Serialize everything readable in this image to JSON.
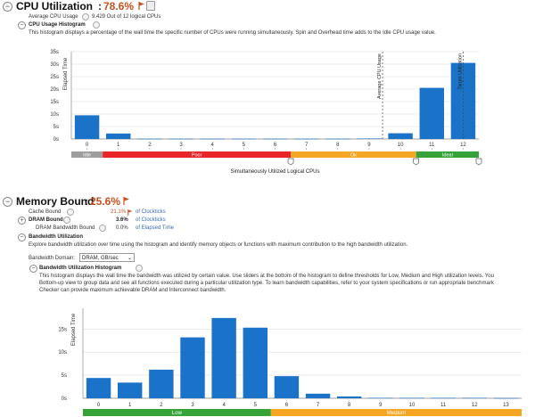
{
  "cpu": {
    "title": "CPU Utilization",
    "value": "78.6%",
    "avg_label": "Average CPU Usage",
    "avg_value": "9.429 Out of 12 logical CPUs",
    "histogram_title": "CPU Usage Histogram",
    "histogram_desc": "This histogram displays a percentage of the wall time the specific number of CPUs were running simultaneously. Spin and Overhead time adds to the Idle CPU usage value.",
    "y_label": "Elapsed Time",
    "x_label": "Simultaneously Utilized Logical CPUs",
    "avg_marker_label": "Average CPU Usage",
    "target_marker_label": "Target Utilization",
    "bands": {
      "idle": "Idle",
      "poor": "Poor",
      "ok": "Ok",
      "ideal": "Ideal"
    },
    "colors": {
      "bar": "#1a72c9",
      "idle": "#9e9e9e",
      "poor": "#e8262a",
      "ok": "#f5a623",
      "ideal": "#35a33a",
      "metric": "#c8501e"
    }
  },
  "memory": {
    "title": "Memory Bound",
    "value": "25.6%",
    "rows": [
      {
        "label": "Cache Bound",
        "value": "21.1%",
        "unit": "of Clockticks"
      },
      {
        "label": "DRAM Bound",
        "value": "3.6%",
        "unit": "of Clockticks"
      },
      {
        "label": "DRAM Bandwidth Bound",
        "value": "0.0%",
        "unit": "of Elapsed Time"
      }
    ],
    "bandwidth_title": "Bandwidth Utilization",
    "bandwidth_desc": "Explore bandwidth utilization over time using the histogram and identify memory objects or functions with maximum contribution to the high bandwidth utilization.",
    "domain_label": "Bandwidth Domain:",
    "domain_value": "DRAM, GB/sec",
    "histogram_title": "Bandwidth Utilization Histogram",
    "desc_lines": [
      "This histogram displays the wall time the bandwidth was utilized by certain value. Use sliders at the bottom of the histogram to define thresholds for Low, Medium and High utilization levels. You",
      "Bottom-up view to group data and see all functions executed during a particular utilization type. To learn bandwidth capabilities, refer to your system specifications or run appropriate benchmark",
      "Checker can provide maximum achievable DRAM and Interconnect bandwidth."
    ],
    "y_label": "Elapsed Time",
    "bands": {
      "low": "Low",
      "medium": "Medium"
    }
  },
  "chart_data": [
    {
      "type": "bar",
      "title": "CPU Usage Histogram",
      "xlabel": "Simultaneously Utilized Logical CPUs",
      "ylabel": "Elapsed Time",
      "categories": [
        "0",
        "1",
        "2",
        "3",
        "4",
        "5",
        "6",
        "7",
        "8",
        "9",
        "10",
        "11",
        "12"
      ],
      "values": [
        9.5,
        2.2,
        0.1,
        0.1,
        0.1,
        0.1,
        0.1,
        0.1,
        0.1,
        0.2,
        2.3,
        20.5,
        30.5
      ],
      "yticks": [
        "0s",
        "5s",
        "10s",
        "15s",
        "20s",
        "25s",
        "30s",
        "35s"
      ],
      "ylim": [
        0,
        35
      ],
      "avg_marker": 9.429,
      "target_marker": 12
    },
    {
      "type": "bar",
      "title": "Bandwidth Utilization Histogram",
      "xlabel": "",
      "ylabel": "Elapsed Time",
      "categories": [
        "0",
        "1",
        "2",
        "3",
        "4",
        "5",
        "6",
        "7",
        "8",
        "9",
        "10",
        "11",
        "12",
        "13"
      ],
      "values": [
        4.4,
        3.4,
        6.2,
        13.2,
        17.4,
        15.3,
        4.8,
        1.0,
        0.4,
        0.1,
        0.1,
        0.1,
        0.1,
        0.05
      ],
      "yticks": [
        "0s",
        "5s",
        "10s",
        "15s"
      ],
      "ylim": [
        0,
        19.5
      ]
    }
  ]
}
